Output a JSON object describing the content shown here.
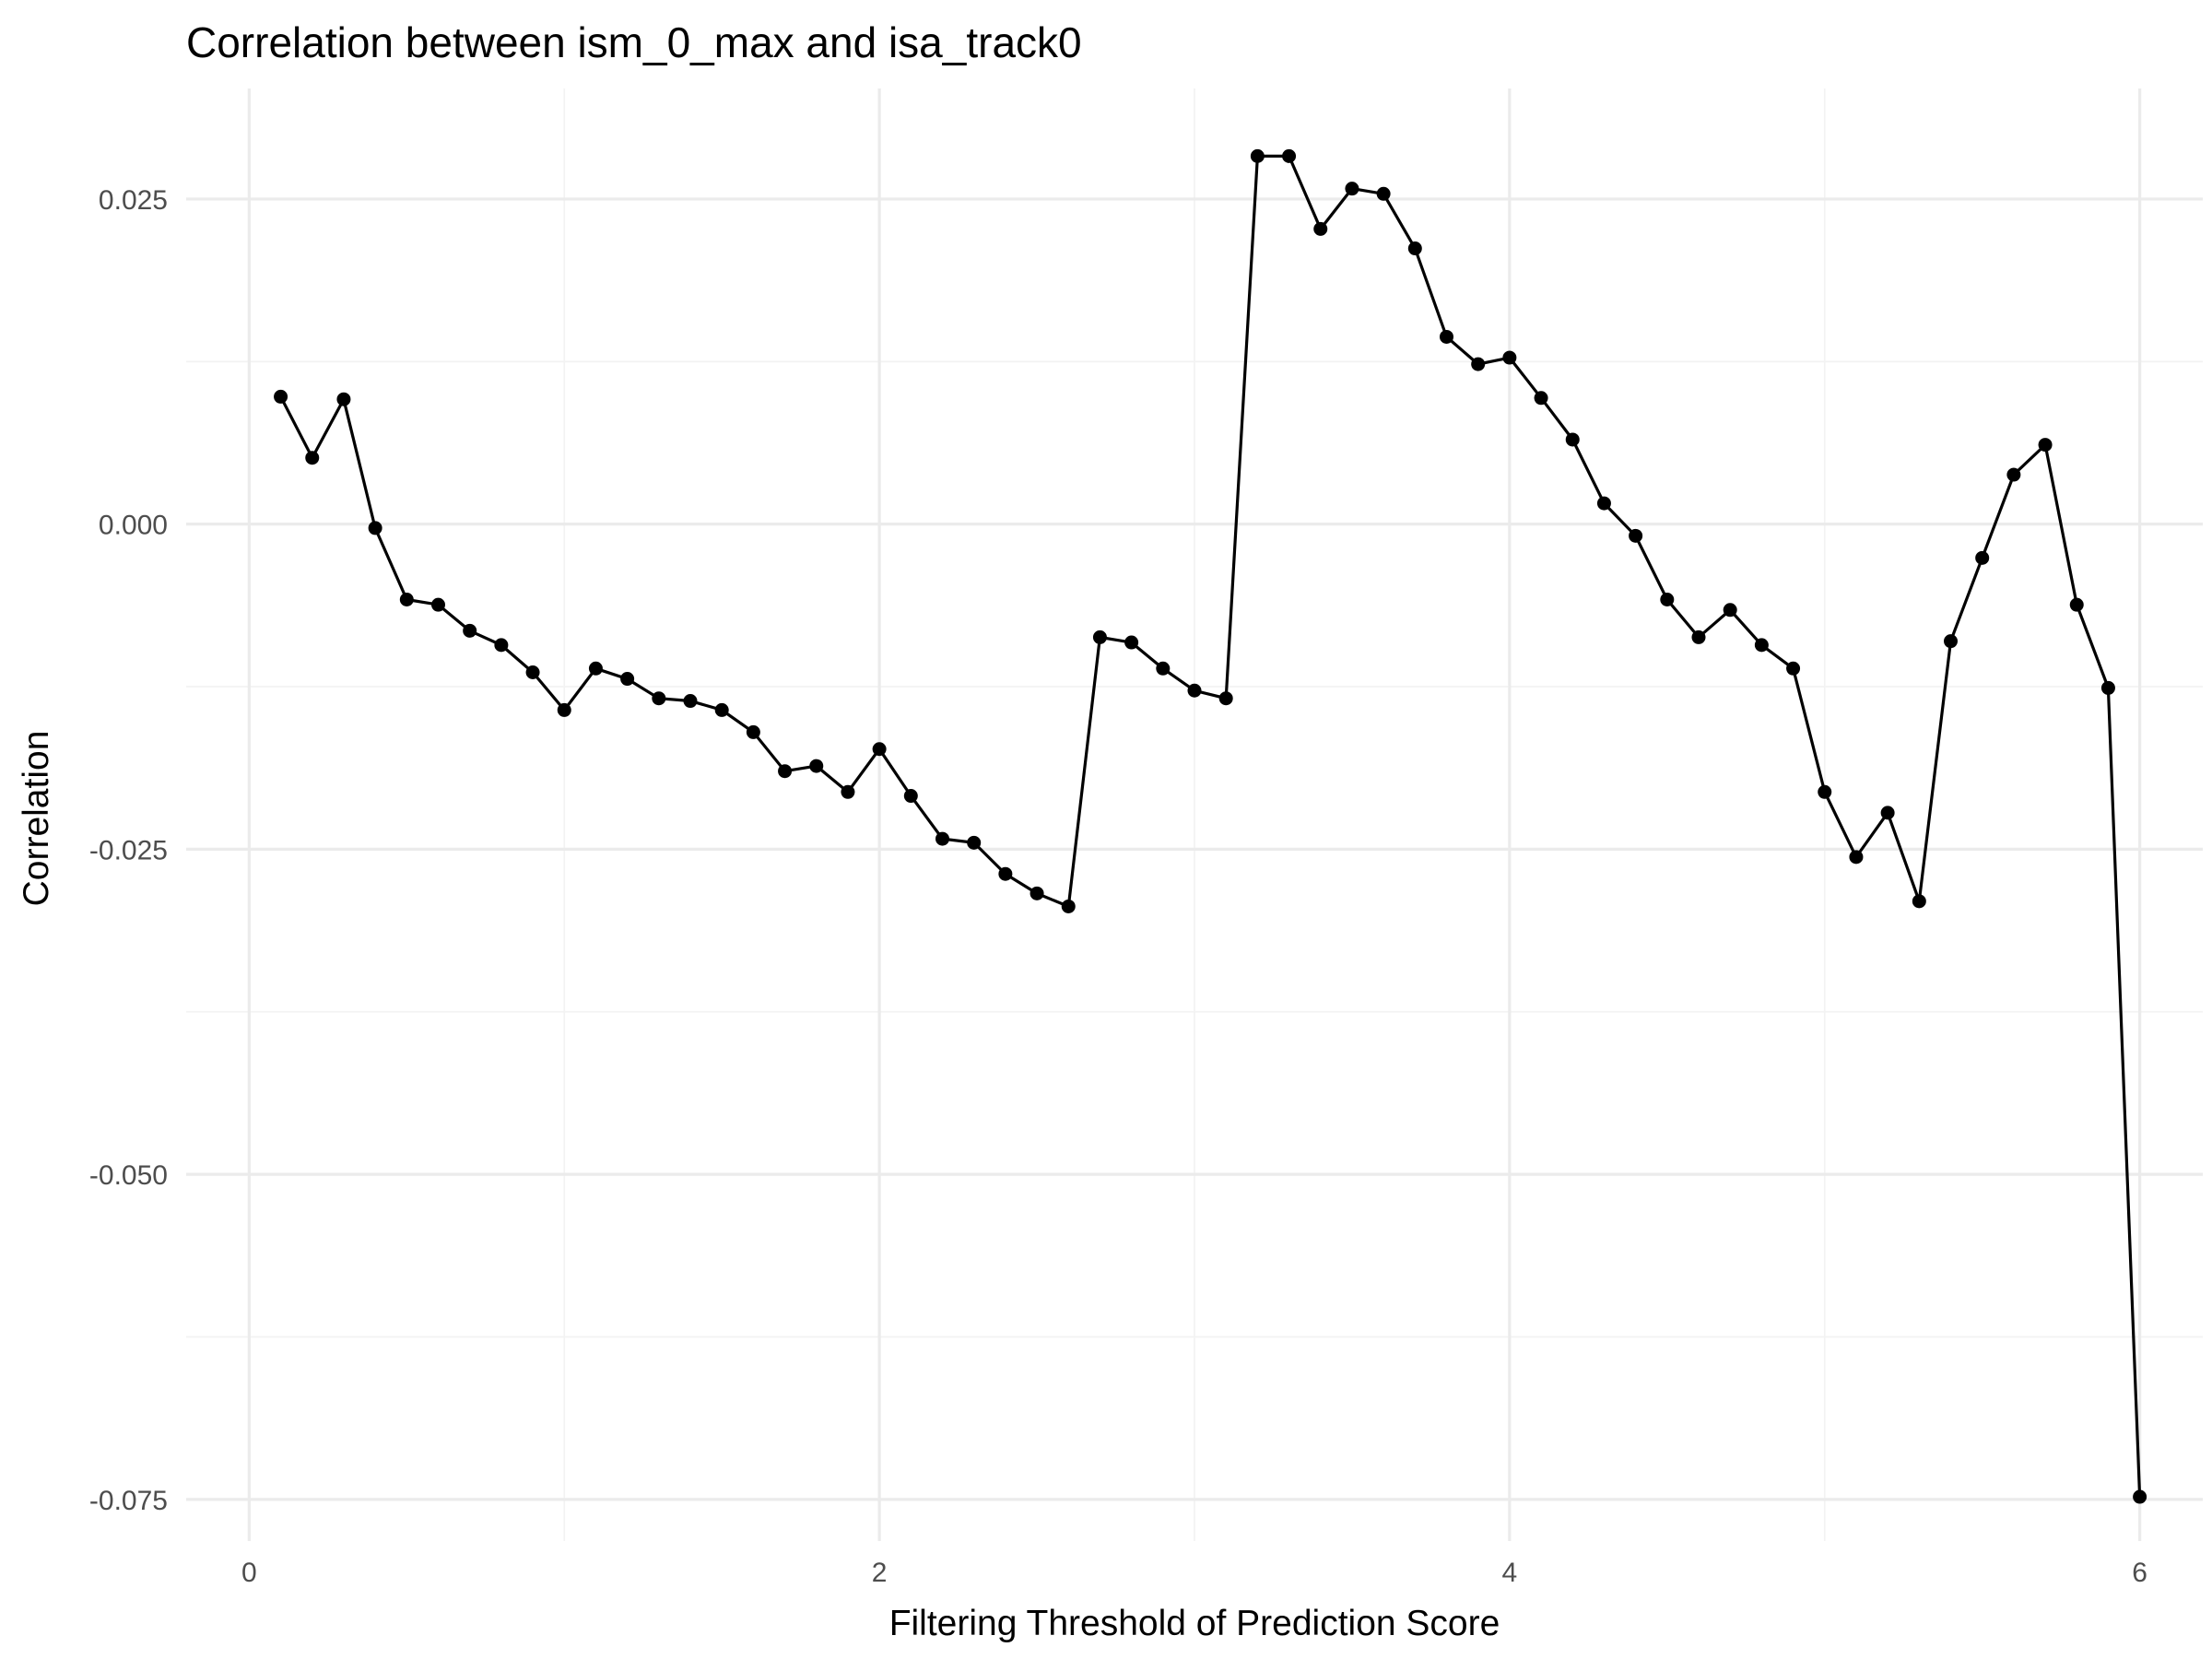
{
  "chart_data": {
    "type": "line",
    "title": "Correlation between ism_0_max and isa_track0",
    "xlabel": "Filtering Threshold of Prediction Score",
    "ylabel": "Correlation",
    "xlim": [
      -0.2,
      6.2
    ],
    "ylim": [
      -0.0782,
      0.0335
    ],
    "x_ticks": [
      0,
      2,
      4,
      6
    ],
    "x_tick_labels": [
      "0",
      "2",
      "4",
      "6"
    ],
    "y_ticks": [
      0.025,
      0.0,
      -0.025,
      -0.05,
      -0.075
    ],
    "y_tick_labels": [
      "0.025",
      "0.000",
      "-0.025",
      "-0.050",
      "-0.075"
    ],
    "grid": true,
    "legend": "none",
    "series": [
      {
        "x": [
          0.1,
          0.2,
          0.3,
          0.4,
          0.5,
          0.6,
          0.7,
          0.8,
          0.9,
          1.0,
          1.1,
          1.2,
          1.3,
          1.4,
          1.5,
          1.6,
          1.7,
          1.8,
          1.9,
          2.0,
          2.1,
          2.2,
          2.3,
          2.4,
          2.5,
          2.6,
          2.7,
          2.8,
          2.9,
          3.0,
          3.1,
          3.2,
          3.3,
          3.4,
          3.5,
          3.6,
          3.7,
          3.8,
          3.9,
          4.0,
          4.1,
          4.2,
          4.3,
          4.4,
          4.5,
          4.6,
          4.7,
          4.8,
          4.9,
          5.0,
          5.1,
          5.2,
          5.3,
          5.4,
          5.5,
          5.6,
          5.7,
          5.8,
          5.9,
          6.0
        ],
        "values": [
          0.0098,
          0.0051,
          0.0096,
          -0.0003,
          -0.0058,
          -0.0062,
          -0.0082,
          -0.0093,
          -0.0114,
          -0.0143,
          -0.0111,
          -0.0119,
          -0.0134,
          -0.0136,
          -0.0143,
          -0.016,
          -0.019,
          -0.0186,
          -0.0206,
          -0.0173,
          -0.0209,
          -0.0242,
          -0.0245,
          -0.0269,
          -0.0284,
          -0.0294,
          -0.0087,
          -0.0091,
          -0.0111,
          -0.0128,
          -0.0134,
          0.0283,
          0.0283,
          0.0227,
          0.0258,
          0.0254,
          0.0212,
          0.0144,
          0.0123,
          0.0128,
          0.0097,
          0.0065,
          0.0016,
          -0.0009,
          -0.0058,
          -0.0087,
          -0.0066,
          -0.0093,
          -0.0111,
          -0.0206,
          -0.0256,
          -0.0222,
          -0.029,
          -0.009,
          -0.0026,
          0.0038,
          0.0061,
          -0.0062,
          -0.0126,
          -0.0748
        ],
        "color": "#000000"
      }
    ]
  }
}
